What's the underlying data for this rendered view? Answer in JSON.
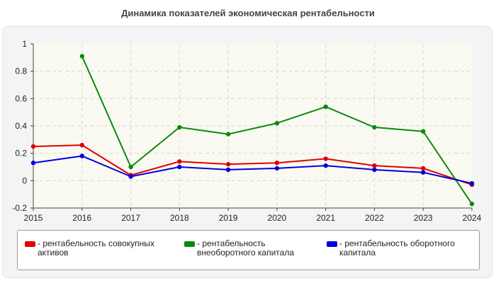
{
  "chart_data": {
    "type": "line",
    "title": "Динамика показателей экономическая рентабельности",
    "x": [
      "2015",
      "2016",
      "2017",
      "2018",
      "2019",
      "2020",
      "2021",
      "2022",
      "2023",
      "2024"
    ],
    "ylim": [
      -0.2,
      1
    ],
    "yticks": [
      "-0.2",
      "0",
      "0.2",
      "0.4",
      "0.6",
      "0.8",
      "1"
    ],
    "grid": true,
    "legend_position": "bottom",
    "series": [
      {
        "name": "- рентабельность совокупных активов",
        "color": "#e00000",
        "values": [
          0.25,
          0.26,
          0.04,
          0.14,
          0.12,
          0.13,
          0.16,
          0.11,
          0.09,
          -0.03
        ]
      },
      {
        "name": "- рентабельность внеоборотного капитала",
        "color": "#0b8a0b",
        "values": [
          null,
          0.91,
          0.1,
          0.39,
          0.34,
          0.42,
          0.54,
          0.39,
          0.36,
          -0.17
        ]
      },
      {
        "name": "- рентабельность оборотного капитала",
        "color": "#0000e0",
        "values": [
          0.13,
          0.18,
          0.03,
          0.1,
          0.08,
          0.09,
          0.11,
          0.08,
          0.06,
          -0.02
        ]
      }
    ]
  }
}
